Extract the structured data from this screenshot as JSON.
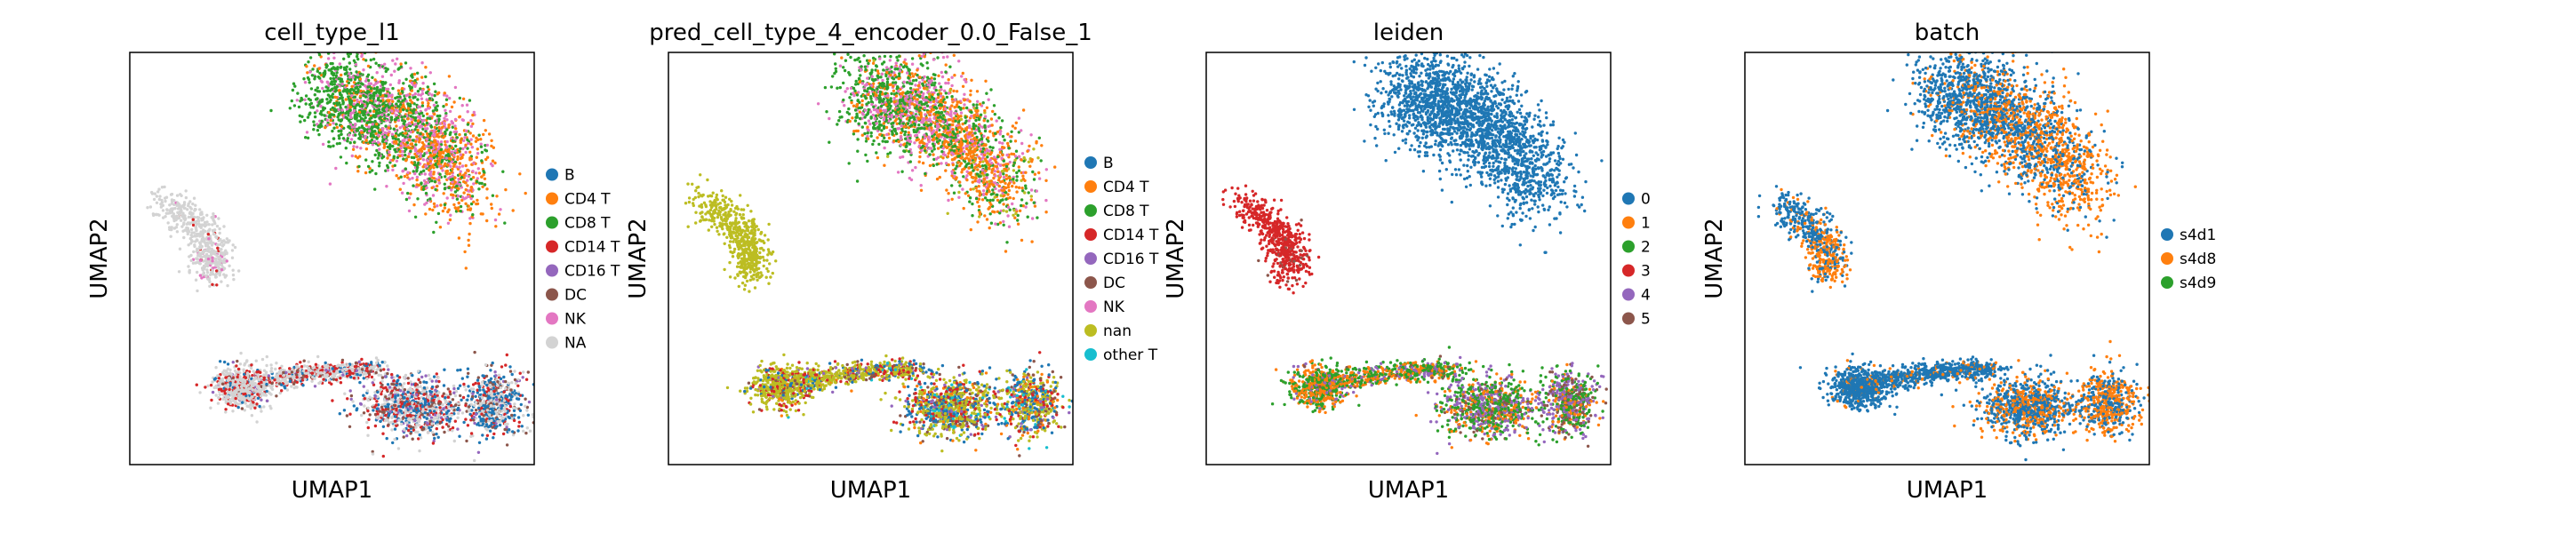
{
  "chart_data": [
    {
      "type": "scatter",
      "title": "cell_type_l1",
      "xlabel": "UMAP1",
      "ylabel": "UMAP2",
      "legend": "right",
      "categories": [
        {
          "label": "B",
          "color": "#1f77b4"
        },
        {
          "label": "CD4 T",
          "color": "#ff7f0e"
        },
        {
          "label": "CD8 T",
          "color": "#2ca02c"
        },
        {
          "label": "CD14 T",
          "color": "#d62728"
        },
        {
          "label": "CD16 T",
          "color": "#9467bd"
        },
        {
          "label": "DC",
          "color": "#8c564b"
        },
        {
          "label": "NK",
          "color": "#e377c2"
        },
        {
          "label": "NA",
          "color": "#d3d3d3"
        }
      ],
      "regions": [
        {
          "shape": "top",
          "mix": {
            "CD8 T": 0.55,
            "NK": 0.2,
            "CD4 T": 0.25
          }
        },
        {
          "shape": "left",
          "mix": {
            "NA": 0.95,
            "CD14 T": 0.02,
            "NK": 0.03
          }
        },
        {
          "shape": "bottom",
          "mix": {
            "NA": 0.55,
            "CD14 T": 0.15,
            "CD16 T": 0.04,
            "DC": 0.08,
            "B": 0.18
          }
        }
      ]
    },
    {
      "type": "scatter",
      "title": "pred_cell_type_4_encoder_0.0_False_1",
      "xlabel": "UMAP1",
      "ylabel": "UMAP2",
      "legend": "right",
      "categories": [
        {
          "label": "B",
          "color": "#1f77b4"
        },
        {
          "label": "CD4 T",
          "color": "#ff7f0e"
        },
        {
          "label": "CD8 T",
          "color": "#2ca02c"
        },
        {
          "label": "CD14 T",
          "color": "#d62728"
        },
        {
          "label": "CD16 T",
          "color": "#9467bd"
        },
        {
          "label": "DC",
          "color": "#8c564b"
        },
        {
          "label": "NK",
          "color": "#e377c2"
        },
        {
          "label": "nan",
          "color": "#bcbd22"
        },
        {
          "label": "other T",
          "color": "#17becf"
        }
      ],
      "regions": [
        {
          "shape": "top",
          "mix": {
            "CD8 T": 0.5,
            "NK": 0.22,
            "CD4 T": 0.25,
            "nan": 0.03
          }
        },
        {
          "shape": "left",
          "mix": {
            "nan": 1.0
          }
        },
        {
          "shape": "bottom",
          "mix": {
            "nan": 0.55,
            "CD14 T": 0.15,
            "CD16 T": 0.04,
            "DC": 0.06,
            "B": 0.12,
            "other T": 0.03,
            "CD4 T": 0.05
          }
        }
      ]
    },
    {
      "type": "scatter",
      "title": "leiden",
      "xlabel": "UMAP1",
      "ylabel": "UMAP2",
      "legend": "right",
      "categories": [
        {
          "label": "0",
          "color": "#1f77b4"
        },
        {
          "label": "1",
          "color": "#ff7f0e"
        },
        {
          "label": "2",
          "color": "#2ca02c"
        },
        {
          "label": "3",
          "color": "#d62728"
        },
        {
          "label": "4",
          "color": "#9467bd"
        },
        {
          "label": "5",
          "color": "#8c564b"
        }
      ],
      "regions": [
        {
          "shape": "top",
          "mix": {
            "0": 1.0
          }
        },
        {
          "shape": "left",
          "mix": {
            "3": 0.97,
            "5": 0.03
          }
        },
        {
          "shape": "bottom",
          "mix": {
            "4": 0.2,
            "5": 0.08,
            "2": 0.35,
            "1": 0.37
          }
        }
      ]
    },
    {
      "type": "scatter",
      "title": "batch",
      "xlabel": "UMAP1",
      "ylabel": "UMAP2",
      "legend": "right",
      "categories": [
        {
          "label": "s4d1",
          "color": "#1f77b4"
        },
        {
          "label": "s4d8",
          "color": "#ff7f0e"
        },
        {
          "label": "s4d9",
          "color": "#2ca02c"
        }
      ],
      "regions": [
        {
          "shape": "top",
          "mix": {
            "s4d1": 0.6,
            "s4d8": 0.4
          }
        },
        {
          "shape": "left",
          "mix": {
            "s4d1": 0.6,
            "s4d8": 0.4
          }
        },
        {
          "shape": "bottom",
          "mix": {
            "s4d1": 0.75,
            "s4d8": 0.25
          }
        }
      ]
    }
  ]
}
